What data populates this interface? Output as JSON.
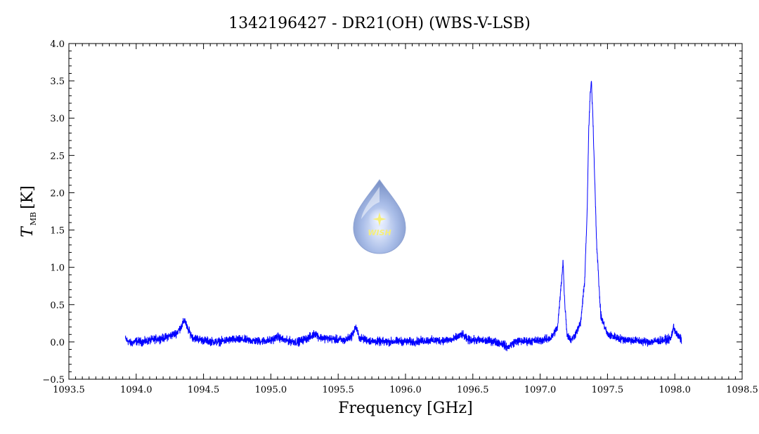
{
  "chart_data": {
    "type": "line",
    "title": "1342196427 - DR21(OH) (WBS-V-LSB)",
    "xlabel": "Frequency [GHz]",
    "ylabel_main": "T",
    "ylabel_sub": "MB",
    "ylabel_unit": "[K]",
    "xlim": [
      1093.5,
      1098.5
    ],
    "ylim": [
      -0.5,
      4.0
    ],
    "x_ticks": [
      1093.5,
      1094.0,
      1094.5,
      1095.0,
      1095.5,
      1096.0,
      1096.5,
      1097.0,
      1097.5,
      1098.0,
      1098.5
    ],
    "x_tick_labels": [
      "1093.5",
      "1094.0",
      "1094.5",
      "1095.0",
      "1095.5",
      "1096.0",
      "1096.5",
      "1097.0",
      "1097.5",
      "1098.0",
      "1098.5"
    ],
    "y_ticks": [
      -0.5,
      0.0,
      0.5,
      1.0,
      1.5,
      2.0,
      2.5,
      3.0,
      3.5,
      4.0
    ],
    "y_tick_labels": [
      "−0.5",
      "0.0",
      "0.5",
      "1.0",
      "1.5",
      "2.0",
      "2.5",
      "3.0",
      "3.5",
      "4.0"
    ],
    "grid": false,
    "series": [
      {
        "color": "#0000ff",
        "x": [
          1093.92,
          1093.96,
          1094.0,
          1094.05,
          1094.1,
          1094.15,
          1094.2,
          1094.25,
          1094.3,
          1094.34,
          1094.36,
          1094.38,
          1094.42,
          1094.5,
          1094.6,
          1094.7,
          1094.8,
          1094.9,
          1095.0,
          1095.05,
          1095.1,
          1095.2,
          1095.3,
          1095.33,
          1095.36,
          1095.45,
          1095.55,
          1095.6,
          1095.63,
          1095.66,
          1095.75,
          1095.85,
          1095.95,
          1096.05,
          1096.15,
          1096.25,
          1096.35,
          1096.42,
          1096.46,
          1096.55,
          1096.65,
          1096.72,
          1096.76,
          1096.78,
          1096.82,
          1096.9,
          1097.0,
          1097.08,
          1097.13,
          1097.16,
          1097.17,
          1097.18,
          1097.2,
          1097.23,
          1097.26,
          1097.3,
          1097.33,
          1097.35,
          1097.36,
          1097.37,
          1097.38,
          1097.39,
          1097.4,
          1097.42,
          1097.45,
          1097.5,
          1097.6,
          1097.7,
          1097.8,
          1097.9,
          1097.97,
          1097.99,
          1098.02,
          1098.05
        ],
        "y": [
          0.04,
          -0.02,
          0.01,
          0.0,
          0.02,
          0.04,
          0.05,
          0.08,
          0.12,
          0.22,
          0.3,
          0.18,
          0.06,
          0.02,
          0.0,
          0.03,
          0.03,
          0.01,
          0.02,
          0.07,
          0.02,
          0.0,
          0.07,
          0.12,
          0.06,
          0.04,
          0.02,
          0.08,
          0.2,
          0.05,
          0.01,
          0.0,
          0.01,
          0.0,
          0.02,
          0.02,
          0.03,
          0.1,
          0.03,
          0.02,
          0.01,
          -0.02,
          -0.08,
          -0.04,
          0.01,
          0.01,
          0.02,
          0.05,
          0.2,
          0.85,
          1.1,
          0.6,
          0.1,
          0.02,
          0.1,
          0.25,
          0.8,
          1.8,
          2.8,
          3.25,
          3.5,
          3.1,
          2.5,
          1.3,
          0.35,
          0.1,
          0.04,
          0.02,
          0.0,
          0.02,
          0.04,
          0.2,
          0.08,
          0.03
        ]
      }
    ]
  }
}
